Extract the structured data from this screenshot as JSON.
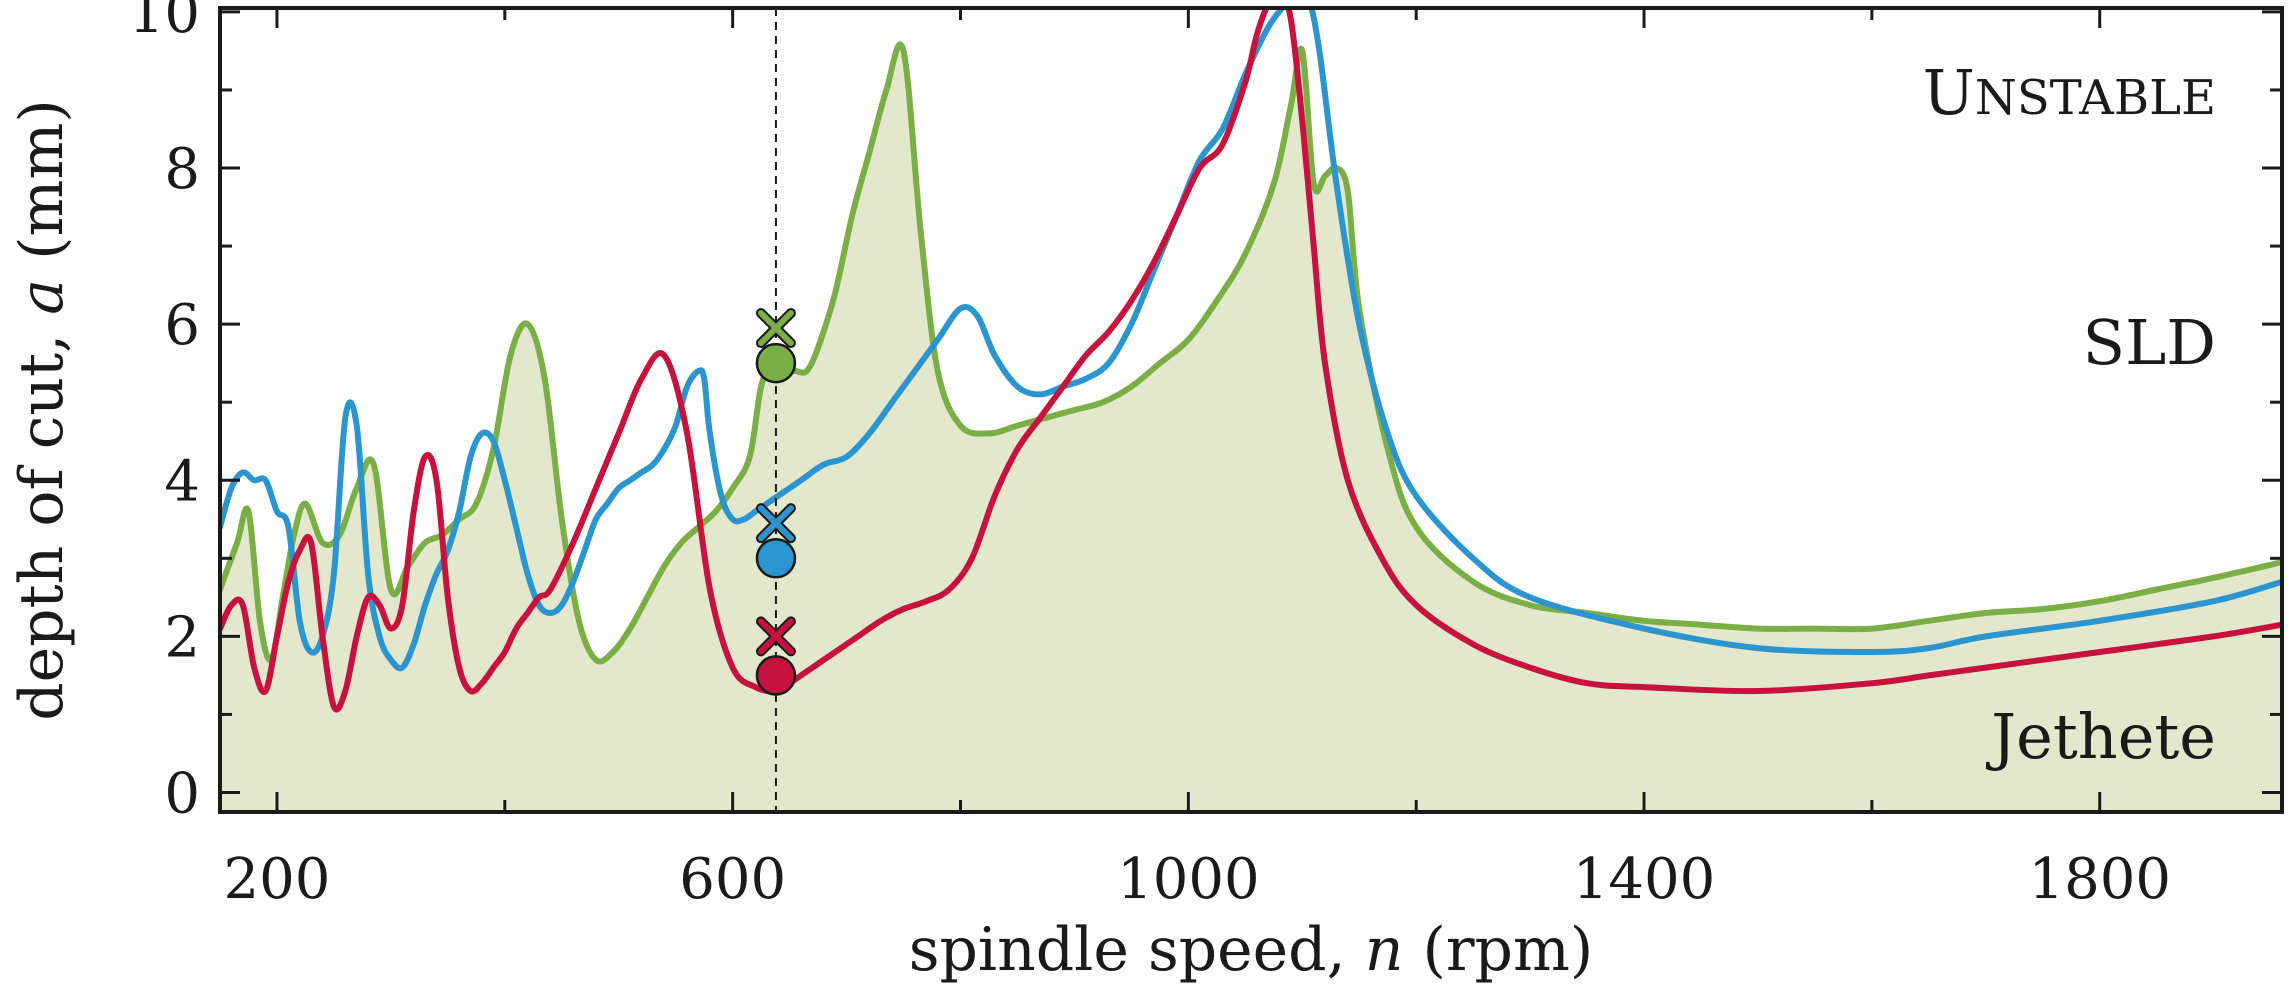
{
  "chart_data": {
    "type": "line",
    "title": "",
    "xlabel_prefix": "spindle speed, ",
    "xlabel_var": "n",
    "xlabel_suffix": " (rpm)",
    "ylabel_prefix": "depth of cut, ",
    "ylabel_var": "a",
    "ylabel_suffix": " (mm)",
    "xlim": [
      150,
      1960
    ],
    "ylim": [
      -0.25,
      10.05
    ],
    "xticks": [
      200,
      600,
      1000,
      1400,
      1800
    ],
    "xticks_minor": [
      400,
      800,
      1200,
      1600
    ],
    "yticks": [
      0,
      2,
      4,
      6,
      8,
      10
    ],
    "yticks_minor": [
      1,
      3,
      5,
      7,
      9
    ],
    "marker_speed": 638,
    "annotations": {
      "unstable_first": "U",
      "unstable_rest": "NSTABLE",
      "sld": "SLD",
      "stable_label": "Jethete"
    },
    "colors": {
      "green": "#7aaf45",
      "blue": "#2b95d0",
      "red": "#c8123e",
      "fill": "#e3e8cc"
    },
    "series": [
      {
        "name": "green",
        "color": "#7aaf45",
        "filled": true,
        "x": [
          150,
          165,
          175,
          185,
          195,
          205,
          215,
          225,
          240,
          255,
          270,
          285,
          300,
          315,
          330,
          345,
          360,
          375,
          390,
          405,
          420,
          435,
          450,
          465,
          480,
          495,
          510,
          525,
          540,
          555,
          570,
          585,
          600,
          615,
          625,
          635,
          645,
          655,
          665,
          675,
          690,
          705,
          720,
          735,
          750,
          765,
          780,
          800,
          825,
          850,
          875,
          900,
          925,
          950,
          975,
          1000,
          1025,
          1050,
          1075,
          1090,
          1100,
          1110,
          1120,
          1130,
          1140,
          1150,
          1175,
          1200,
          1250,
          1300,
          1350,
          1400,
          1450,
          1500,
          1550,
          1600,
          1650,
          1700,
          1750,
          1800,
          1850,
          1900,
          1960
        ],
        "y": [
          2.6,
          3.2,
          3.6,
          2.2,
          1.7,
          2.5,
          3.3,
          3.7,
          3.2,
          3.3,
          3.9,
          4.2,
          2.6,
          2.9,
          3.2,
          3.3,
          3.5,
          3.7,
          4.4,
          5.6,
          6.0,
          5.3,
          3.5,
          2.2,
          1.7,
          1.8,
          2.1,
          2.5,
          2.9,
          3.2,
          3.4,
          3.6,
          3.9,
          4.3,
          5.2,
          5.5,
          5.4,
          5.4,
          5.4,
          5.7,
          6.4,
          7.4,
          8.2,
          9.0,
          9.5,
          7.2,
          5.4,
          4.7,
          4.6,
          4.7,
          4.8,
          4.9,
          5.0,
          5.2,
          5.5,
          5.8,
          6.3,
          6.9,
          7.8,
          8.8,
          9.5,
          7.8,
          7.9,
          8.0,
          7.7,
          6.2,
          4.4,
          3.4,
          2.7,
          2.4,
          2.3,
          2.2,
          2.15,
          2.1,
          2.1,
          2.1,
          2.2,
          2.3,
          2.35,
          2.45,
          2.6,
          2.75,
          2.95
        ]
      },
      {
        "name": "blue",
        "color": "#2b95d0",
        "filled": false,
        "x": [
          150,
          160,
          170,
          180,
          190,
          200,
          210,
          220,
          230,
          240,
          250,
          260,
          270,
          280,
          290,
          300,
          310,
          320,
          330,
          340,
          350,
          360,
          370,
          380,
          390,
          400,
          410,
          420,
          430,
          440,
          450,
          460,
          470,
          480,
          490,
          500,
          510,
          520,
          530,
          540,
          550,
          560,
          570,
          575,
          580,
          590,
          600,
          610,
          620,
          630,
          640,
          660,
          680,
          700,
          720,
          740,
          760,
          780,
          800,
          815,
          830,
          850,
          870,
          890,
          910,
          930,
          950,
          970,
          990,
          1010,
          1030,
          1050,
          1070,
          1085,
          1095,
          1105,
          1115,
          1130,
          1150,
          1175,
          1200,
          1250,
          1300,
          1400,
          1500,
          1600,
          1650,
          1700,
          1800,
          1900,
          1960
        ],
        "y": [
          3.4,
          3.9,
          4.1,
          4.0,
          4.0,
          3.6,
          3.4,
          2.2,
          1.8,
          2.0,
          2.8,
          4.8,
          4.7,
          2.8,
          2.0,
          1.7,
          1.6,
          1.9,
          2.4,
          2.8,
          3.1,
          3.6,
          4.3,
          4.6,
          4.5,
          4.0,
          3.4,
          2.8,
          2.4,
          2.3,
          2.4,
          2.7,
          3.1,
          3.5,
          3.7,
          3.9,
          4.0,
          4.1,
          4.2,
          4.4,
          4.7,
          5.2,
          5.4,
          5.3,
          4.6,
          3.8,
          3.5,
          3.5,
          3.6,
          3.7,
          3.8,
          4.0,
          4.2,
          4.3,
          4.6,
          5.0,
          5.4,
          5.8,
          6.2,
          6.1,
          5.6,
          5.2,
          5.1,
          5.2,
          5.3,
          5.5,
          6.0,
          6.7,
          7.4,
          8.1,
          8.5,
          9.2,
          9.8,
          10.1,
          10.3,
          10.2,
          9.5,
          7.8,
          6.0,
          4.6,
          3.8,
          3.0,
          2.5,
          2.1,
          1.85,
          1.8,
          1.85,
          2.0,
          2.2,
          2.45,
          2.7
        ]
      },
      {
        "name": "red",
        "color": "#c8123e",
        "filled": false,
        "x": [
          150,
          160,
          170,
          180,
          190,
          200,
          210,
          220,
          230,
          240,
          250,
          260,
          270,
          280,
          290,
          300,
          310,
          320,
          330,
          340,
          350,
          360,
          370,
          380,
          390,
          400,
          410,
          420,
          430,
          440,
          460,
          480,
          500,
          520,
          540,
          560,
          580,
          600,
          620,
          638,
          650,
          670,
          690,
          710,
          730,
          750,
          770,
          790,
          810,
          830,
          850,
          870,
          890,
          910,
          930,
          950,
          970,
          990,
          1010,
          1030,
          1050,
          1060,
          1070,
          1080,
          1090,
          1100,
          1110,
          1120,
          1140,
          1170,
          1200,
          1250,
          1300,
          1350,
          1400,
          1500,
          1600,
          1650,
          1700,
          1800,
          1900,
          1960
        ],
        "y": [
          2.1,
          2.4,
          2.4,
          1.6,
          1.3,
          2.0,
          2.7,
          3.1,
          3.2,
          2.0,
          1.1,
          1.3,
          2.0,
          2.5,
          2.4,
          2.1,
          2.4,
          3.6,
          4.3,
          4.0,
          2.5,
          1.6,
          1.3,
          1.4,
          1.6,
          1.8,
          2.1,
          2.3,
          2.5,
          2.6,
          3.2,
          3.9,
          4.6,
          5.3,
          5.6,
          4.6,
          2.6,
          1.6,
          1.35,
          1.3,
          1.4,
          1.6,
          1.8,
          2.0,
          2.2,
          2.35,
          2.45,
          2.6,
          3.0,
          3.8,
          4.4,
          4.8,
          5.2,
          5.6,
          5.9,
          6.3,
          6.8,
          7.4,
          8.0,
          8.3,
          9.1,
          9.7,
          10.1,
          10.3,
          9.9,
          8.6,
          7.0,
          5.5,
          4.0,
          3.0,
          2.4,
          1.9,
          1.6,
          1.4,
          1.35,
          1.3,
          1.4,
          1.5,
          1.6,
          1.8,
          2.0,
          2.15
        ]
      }
    ],
    "markers": [
      {
        "series": "green",
        "cross_y": 5.95,
        "circle_y": 5.5
      },
      {
        "series": "blue",
        "cross_y": 3.45,
        "circle_y": 3.0
      },
      {
        "series": "red",
        "cross_y": 2.0,
        "circle_y": 1.5
      }
    ]
  }
}
